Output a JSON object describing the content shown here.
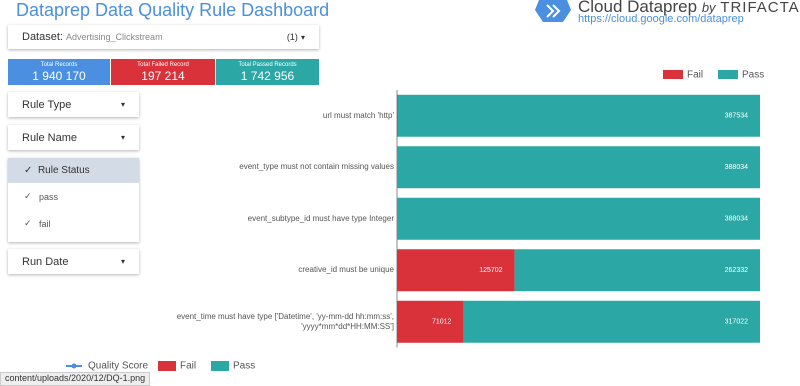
{
  "header": {
    "title": "Dataprep Data Quality Rule Dashboard",
    "brand": "Cloud Dataprep",
    "by": "by",
    "partner": "TRIFACTA",
    "link": "https://cloud.google.com/dataprep"
  },
  "dataset": {
    "label": "Dataset:",
    "value": "Advertising_Clickstream",
    "count": "(1)"
  },
  "scorecards": [
    {
      "label": "Total Records",
      "value": "1 940 170"
    },
    {
      "label": "Total Failed Record",
      "value": "197 214"
    },
    {
      "label": "Total Passed Records",
      "value": "1 742 956"
    }
  ],
  "filters": {
    "rule_type": "Rule Type",
    "rule_name": "Rule Name",
    "rule_status": "Rule Status",
    "options": [
      "pass",
      "fail"
    ],
    "run_date": "Run Date"
  },
  "chart_data": {
    "type": "stacked-bar-horizontal",
    "categories": [
      "url must match 'http'",
      "event_type must not contain missing values",
      "event_subtype_id must have type Integer",
      "creative_id must be unique",
      "event_time must have type ['Datetime', 'yy-mm-dd hh:mm:ss', 'yyyy*mm*dd*HH:MM:SS']"
    ],
    "series": [
      {
        "name": "Fail",
        "color": "#d9323a",
        "values": [
          500,
          0,
          0,
          125702,
          71012
        ]
      },
      {
        "name": "Pass",
        "color": "#2ba8a5",
        "values": [
          387534,
          388034,
          388034,
          262332,
          317022
        ]
      }
    ],
    "xlim": [
      0,
      388034
    ],
    "legend": "top-right"
  },
  "bottom_legend": [
    "Quality Score",
    "Fail",
    "Pass"
  ],
  "status_bar": "content/uploads/2020/12/DQ-1.png"
}
